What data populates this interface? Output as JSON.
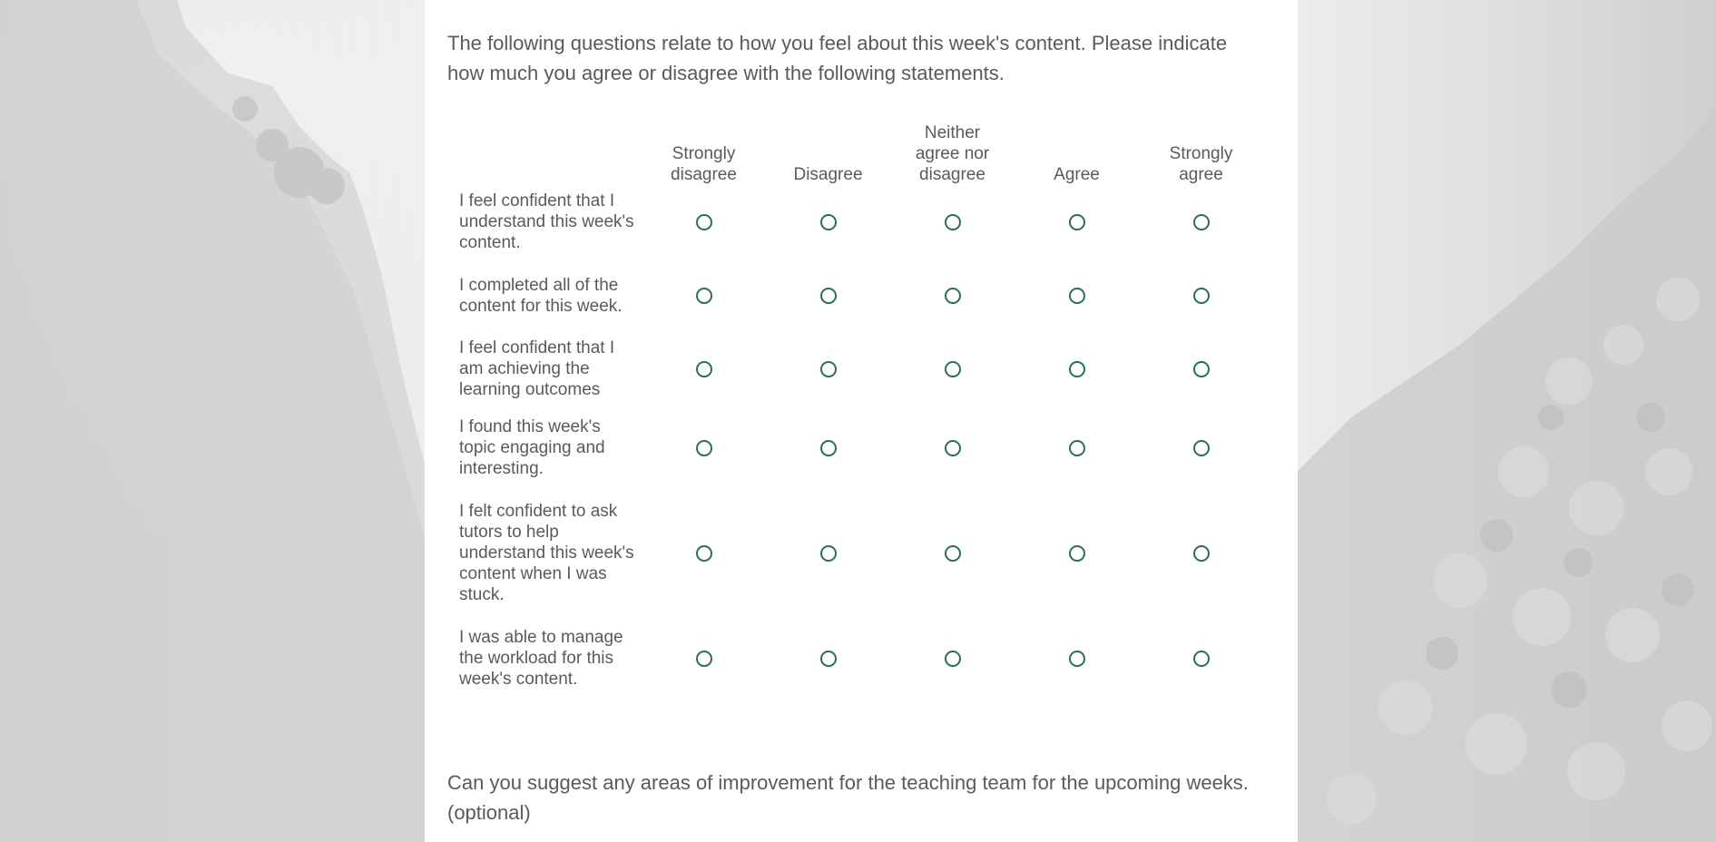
{
  "intro_text": "The following questions relate to how you feel about this week's content. Please indicate how much you agree or disagree with the following statements.",
  "scale_options": [
    "Strongly disagree",
    "Disagree",
    "Neither agree nor disagree",
    "Agree",
    "Strongly agree"
  ],
  "statements": [
    "I feel confident that I understand this week's content.",
    "I completed all of the content for this week.",
    "I feel confident that I am achieving the learning outcomes",
    "I found this week's topic engaging and interesting.",
    "I felt confident to ask tutors to help understand this week's content when I was stuck.",
    "I was able to manage the workload for this week's content."
  ],
  "suggest_text": "Can you suggest any areas of improvement for the teaching team for the upcoming weeks. (optional)",
  "colors": {
    "accent": "#2c6e55",
    "text": "#5a5a5a",
    "panel": "#ffffff"
  }
}
